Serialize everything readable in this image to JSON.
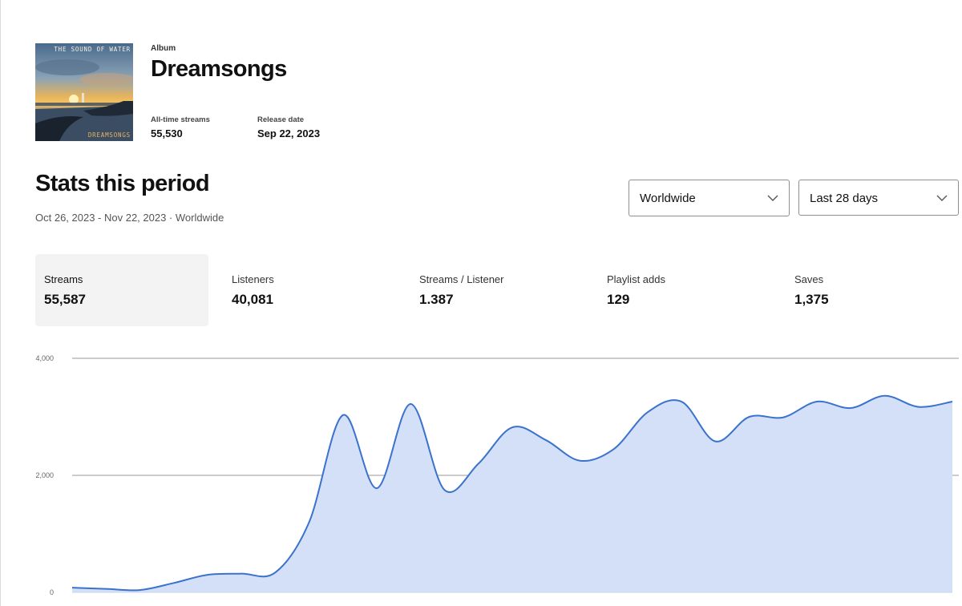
{
  "album": {
    "kind_label": "Album",
    "title": "Dreamsongs",
    "cover_text_top": "THE SOUND OF WATER",
    "cover_text_bottom": "DREAMSONGS",
    "all_time_streams_label": "All-time streams",
    "all_time_streams_value": "55,530",
    "release_date_label": "Release date",
    "release_date_value": "Sep 22, 2023"
  },
  "stats": {
    "title": "Stats this period",
    "subtitle": "Oct 26, 2023 - Nov 22, 2023 · Worldwide"
  },
  "filters": {
    "region": "Worldwide",
    "period": "Last 28 days"
  },
  "metrics": [
    {
      "label": "Streams",
      "value": "55,587",
      "active": true
    },
    {
      "label": "Listeners",
      "value": "40,081",
      "active": false
    },
    {
      "label": "Streams / Listener",
      "value": "1.387",
      "active": false
    },
    {
      "label": "Playlist adds",
      "value": "129",
      "active": false
    },
    {
      "label": "Saves",
      "value": "1,375",
      "active": false
    }
  ],
  "colors": {
    "line": "#3a72cc",
    "area": "#d3e0f7",
    "grid": "#9a9a9a",
    "active_tab": "#f3f3f3"
  },
  "chart_data": {
    "type": "area",
    "y_ticks": [
      "0",
      "2,000",
      "4,000"
    ],
    "ylim": [
      0,
      4000
    ],
    "grid": true,
    "series": [
      {
        "values": [
          80,
          60,
          40,
          160,
          300,
          320,
          340,
          1200,
          3030,
          1780,
          3220,
          1750,
          2200,
          2820,
          2600,
          2250,
          2450,
          3080,
          3260,
          2580,
          3000,
          2990,
          3260,
          3150,
          3360,
          3170,
          3260
        ]
      }
    ]
  }
}
